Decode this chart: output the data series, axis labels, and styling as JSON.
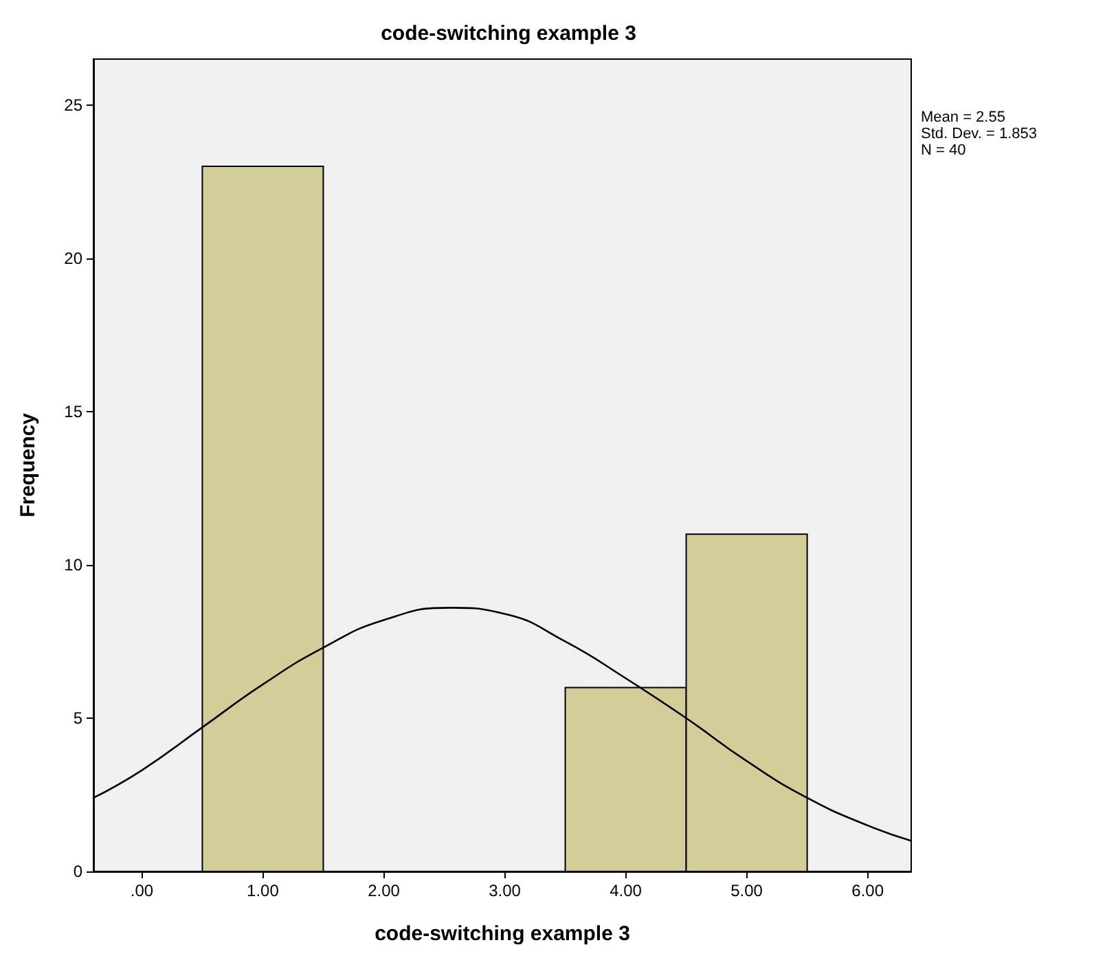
{
  "chart_data": {
    "type": "histogram",
    "title": "code-switching example 3",
    "xlabel": "code-switching example 3",
    "ylabel": "Frequency",
    "bins": [
      0.5,
      1.5,
      2.5,
      3.5,
      4.5,
      5.5
    ],
    "values": [
      23,
      0,
      0,
      6,
      11
    ],
    "color": "#d3ce97",
    "series": [
      {
        "type": "line",
        "color": "#000000",
        "x": [
          -0.4,
          0,
          0.5,
          1,
          1.5,
          2,
          2.55,
          3,
          3.5,
          4,
          4.5,
          5,
          5.5,
          6,
          6.36
        ],
        "values": [
          2.4,
          3.3,
          4.7,
          6.1,
          7.3,
          8.2,
          8.6,
          8.4,
          7.5,
          6.3,
          5.0,
          3.6,
          2.4,
          1.5,
          1.0
        ]
      }
    ],
    "xlim": [
      -0.4,
      6.36
    ],
    "xticks": [
      {
        "value": 0,
        "label": ".00"
      },
      {
        "value": 1,
        "label": "1.00"
      },
      {
        "value": 2,
        "label": "2.00"
      },
      {
        "value": 3,
        "label": "3.00"
      },
      {
        "value": 4,
        "label": "4.00"
      },
      {
        "value": 5,
        "label": "5.00"
      },
      {
        "value": 6,
        "label": "6.00"
      }
    ],
    "ylim": [
      0,
      26.5
    ],
    "yticks": [
      0,
      5,
      10,
      15,
      20,
      25
    ],
    "annotations": [
      "Mean = 2.55",
      "Std. Dev. = 1.853",
      "N = 40"
    ],
    "grid": false,
    "line_style": "solid"
  }
}
